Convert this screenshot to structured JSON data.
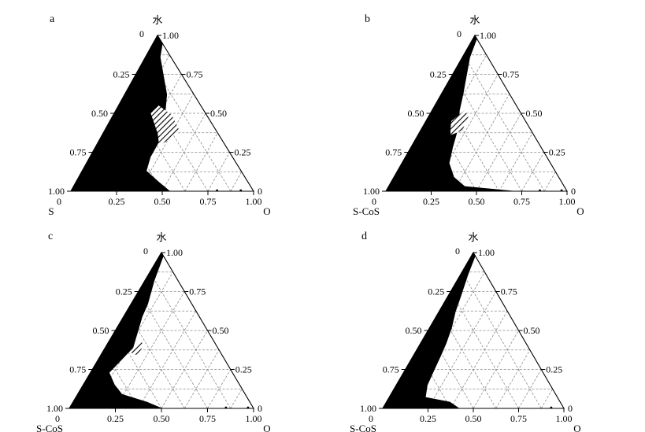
{
  "panels": [
    {
      "id": "a",
      "letter": "a",
      "top_label": "水",
      "left_label": "S",
      "right_label": "O",
      "apex_zero": "0",
      "bottom_left_zero": "0",
      "bottom_right_zero": "0",
      "left_ticks": [
        "0.25",
        "0.50",
        "0.75",
        "1.00"
      ],
      "right_ticks": [
        "1.00",
        "0.75",
        "0.50",
        "0.25"
      ],
      "bottom_ticks": [
        "0.25",
        "0.50",
        "0.75",
        "1.00"
      ],
      "black_region": [
        [
          0,
          0
        ],
        [
          0,
          1
        ],
        [
          0.05,
          0.95
        ],
        [
          0.08,
          0.86
        ],
        [
          0.23,
          0.62
        ],
        [
          0.27,
          0.52
        ],
        [
          0.33,
          0.34
        ],
        [
          0.33,
          0.22
        ],
        [
          0.35,
          0.13
        ],
        [
          0.45,
          0.06
        ],
        [
          0.54,
          0
        ]
      ],
      "hatched_region": [
        [
          0.2,
          0.5
        ],
        [
          0.3,
          0.37
        ],
        [
          0.34,
          0.3
        ],
        [
          0.35,
          0.3
        ],
        [
          0.37,
          0.32
        ],
        [
          0.41,
          0.38
        ],
        [
          0.4,
          0.4
        ],
        [
          0.32,
          0.49
        ],
        [
          0.22,
          0.55
        ]
      ],
      "dots": [
        [
          0.8,
          0
        ],
        [
          0.93,
          0
        ]
      ]
    },
    {
      "id": "b",
      "letter": "b",
      "top_label": "水",
      "left_label": "S-CoS",
      "right_label": "O",
      "apex_zero": "0",
      "bottom_left_zero": "0",
      "bottom_right_zero": "0",
      "left_ticks": [
        "0.25",
        "0.50",
        "0.75",
        "1.00"
      ],
      "right_ticks": [
        "1.00",
        "0.75",
        "0.50",
        "0.25"
      ],
      "bottom_ticks": [
        "0.25",
        "0.50",
        "0.75",
        "1.00"
      ],
      "black_region": [
        [
          0,
          0
        ],
        [
          0,
          1
        ],
        [
          0.02,
          0.98
        ],
        [
          0.04,
          0.86
        ],
        [
          0.12,
          0.62
        ],
        [
          0.15,
          0.52
        ],
        [
          0.2,
          0.4
        ],
        [
          0.23,
          0.28
        ],
        [
          0.26,
          0.18
        ],
        [
          0.33,
          0.09
        ],
        [
          0.42,
          0.03
        ],
        [
          0.7,
          0
        ]
      ],
      "hatched_region": [
        [
          0.14,
          0.45
        ],
        [
          0.16,
          0.4
        ],
        [
          0.18,
          0.36
        ],
        [
          0.23,
          0.39
        ],
        [
          0.22,
          0.48
        ],
        [
          0.18,
          0.52
        ]
      ],
      "dots": [
        [
          0.85,
          0
        ],
        [
          0.97,
          0
        ]
      ]
    },
    {
      "id": "c",
      "letter": "c",
      "top_label": "水",
      "left_label": "S-CoS",
      "right_label": "O",
      "apex_zero": "0",
      "bottom_left_zero": "0",
      "bottom_right_zero": "0",
      "left_ticks": [
        "0.25",
        "0.50",
        "0.75",
        "1.00"
      ],
      "right_ticks": [
        "1.00",
        "0.75",
        "0.50",
        "0.25"
      ],
      "bottom_ticks": [
        "0.25",
        "0.50",
        "0.75",
        "1.00"
      ],
      "black_region": [
        [
          0,
          0
        ],
        [
          0,
          1
        ],
        [
          0.02,
          0.98
        ],
        [
          0.05,
          0.82
        ],
        [
          0.09,
          0.67
        ],
        [
          0.1,
          0.59
        ],
        [
          0.13,
          0.47
        ],
        [
          0.15,
          0.39
        ],
        [
          0.1,
          0.23
        ],
        [
          0.17,
          0.15
        ],
        [
          0.24,
          0.09
        ],
        [
          0.4,
          0.04
        ],
        [
          0.5,
          0
        ]
      ],
      "hatched_region": [
        [
          0.15,
          0.36
        ],
        [
          0.2,
          0.34
        ],
        [
          0.2,
          0.4
        ],
        [
          0.17,
          0.44
        ]
      ],
      "dots": [
        [
          0.85,
          0
        ],
        [
          0.97,
          0
        ]
      ]
    },
    {
      "id": "d",
      "letter": "d",
      "top_label": "水",
      "left_label": "S-CoS",
      "right_label": "O",
      "apex_zero": "0",
      "bottom_left_zero": "0",
      "bottom_right_zero": "0",
      "left_ticks": [
        "0.25",
        "0.50",
        "0.75",
        "1.00"
      ],
      "right_ticks": [
        "1.00",
        "0.75",
        "0.50",
        "0.25"
      ],
      "bottom_ticks": [
        "0.25",
        "0.50",
        "0.75",
        "1.00"
      ],
      "black_region": [
        [
          0,
          0
        ],
        [
          0,
          1
        ],
        [
          0.02,
          0.98
        ],
        [
          0.04,
          0.86
        ],
        [
          0.07,
          0.72
        ],
        [
          0.09,
          0.62
        ],
        [
          0.12,
          0.52
        ],
        [
          0.14,
          0.42
        ],
        [
          0.15,
          0.34
        ],
        [
          0.16,
          0.24
        ],
        [
          0.17,
          0.15
        ],
        [
          0.2,
          0.07
        ],
        [
          0.35,
          0.04
        ],
        [
          0.42,
          0
        ]
      ],
      "hatched_region": [],
      "dots": [
        [
          0.93,
          0
        ]
      ]
    }
  ]
}
